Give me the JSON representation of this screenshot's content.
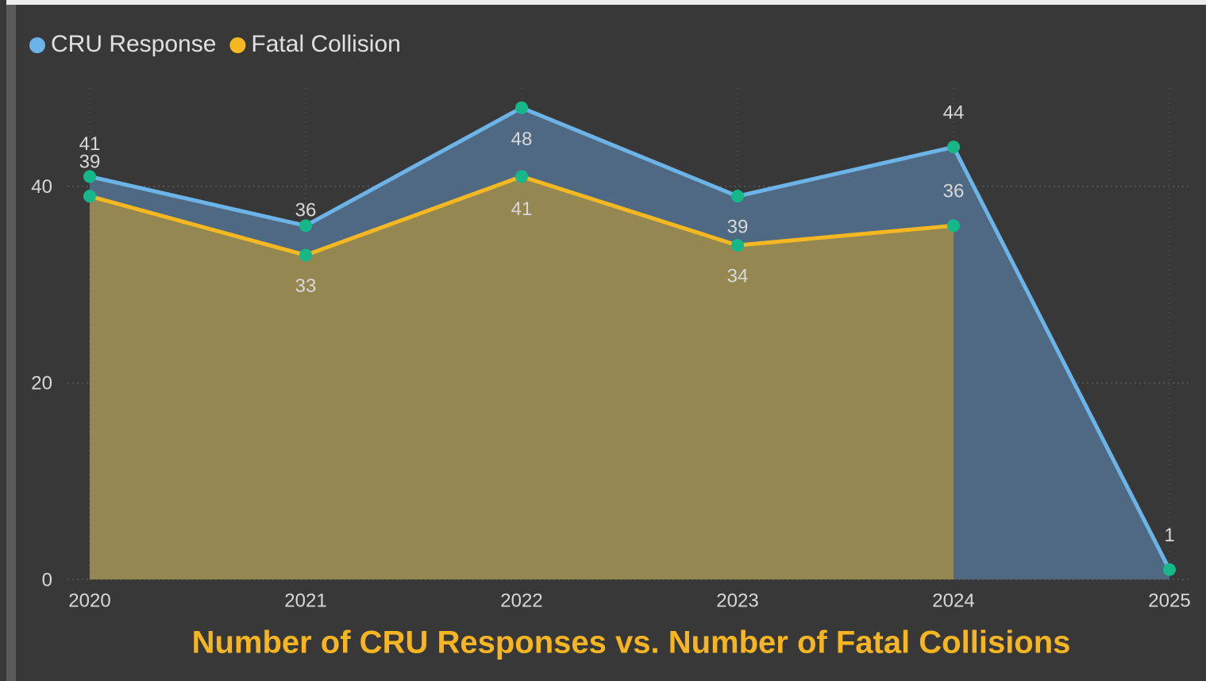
{
  "chart_data": {
    "type": "area",
    "title": "Number of CRU Responses vs. Number of Fatal Collisions",
    "categories": [
      "2020",
      "2021",
      "2022",
      "2023",
      "2024",
      "2025"
    ],
    "series": [
      {
        "name": "CRU Response",
        "color": "#6cb4e8",
        "values": [
          41,
          36,
          48,
          39,
          44,
          1
        ]
      },
      {
        "name": "Fatal Collision",
        "color": "#f5b820",
        "values": [
          39,
          33,
          41,
          34,
          36,
          null
        ]
      }
    ],
    "marker_color": "#16b88a",
    "ylim": [
      0,
      50
    ],
    "yticks": [
      0,
      20,
      40
    ],
    "grid": true,
    "legend": "top-left"
  }
}
